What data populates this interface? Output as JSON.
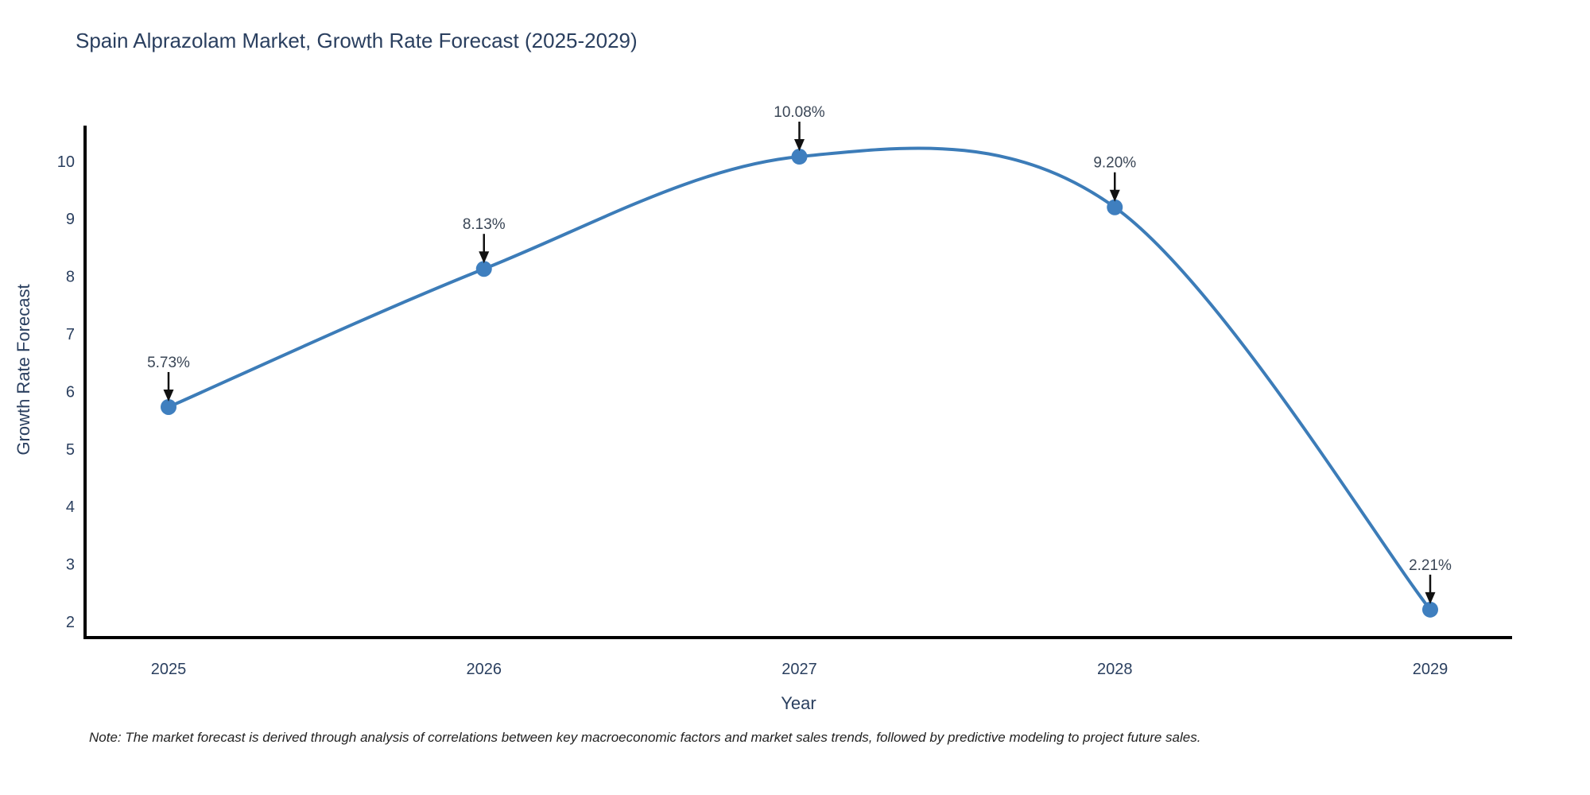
{
  "chart_data": {
    "type": "line",
    "line_shape": "spline",
    "title": "Spain Alprazolam Market, Growth Rate Forecast (2025-2029)",
    "xlabel": "Year",
    "ylabel": "Growth Rate Forecast",
    "categories": [
      "2025",
      "2026",
      "2027",
      "2028",
      "2029"
    ],
    "values": [
      5.73,
      8.13,
      10.08,
      9.2,
      2.21
    ],
    "point_labels": [
      "5.73%",
      "8.13%",
      "10.08%",
      "9.20%",
      "2.21%"
    ],
    "y_ticks": [
      "2",
      "3",
      "4",
      "5",
      "6",
      "7",
      "8",
      "9",
      "10"
    ],
    "y_tick_values": [
      2,
      3,
      4,
      5,
      6,
      7,
      8,
      9,
      10
    ],
    "ylim": [
      1.72,
      10.59
    ],
    "grid": false,
    "legend": "none",
    "markers": "circle",
    "annotations": "value labels above each point with downward arrows",
    "colors": {
      "line": "#3c7cb8",
      "marker": "#3f7fbf",
      "axis": "#000000",
      "title": "#2a3f5f",
      "tick": "#2a3f5f",
      "axis_title": "#2a3f5f",
      "annotation": "#3a4656",
      "arrow": "#111111",
      "note": "#222222",
      "background": "#ffffff"
    }
  },
  "note": {
    "text": "Note: The market forecast is derived through analysis of correlations between key macroeconomic factors and market sales trends, followed by predictive modeling to project future sales."
  }
}
